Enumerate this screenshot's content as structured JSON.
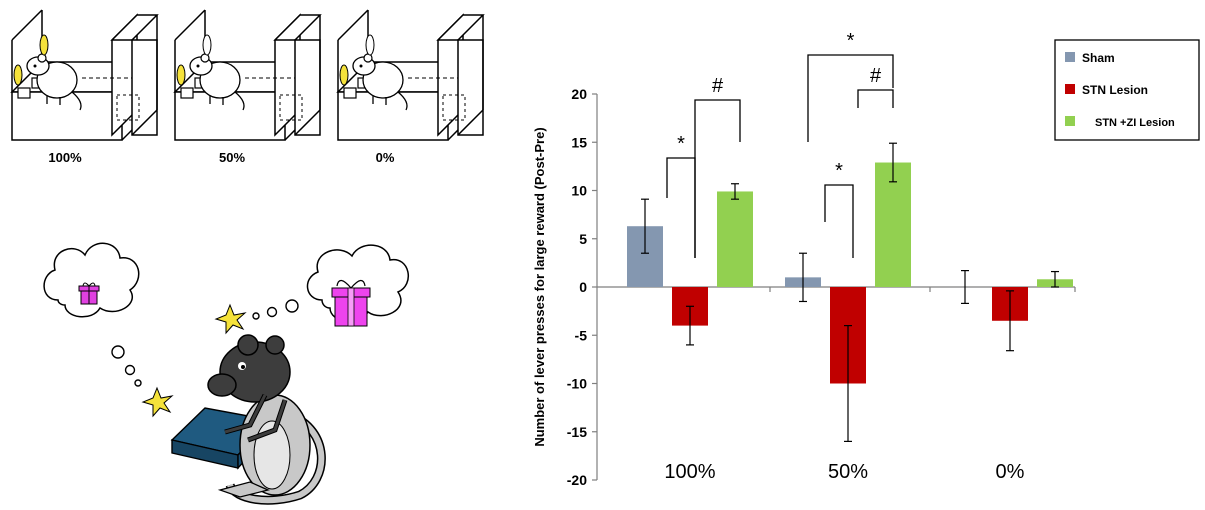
{
  "illustration": {
    "chamber_labels": [
      "100%",
      "50%",
      "0%"
    ]
  },
  "chart_data": {
    "type": "bar",
    "categories": [
      "100%",
      "50%",
      "0%"
    ],
    "series": [
      {
        "name": "Sham",
        "color": "#8497b0",
        "values": [
          6.3,
          1.0,
          0.0
        ],
        "errors": [
          2.8,
          2.5,
          1.7
        ]
      },
      {
        "name": "STN Lesion",
        "color": "#c00000",
        "values": [
          -4.0,
          -10.0,
          -3.5
        ],
        "errors": [
          2.0,
          6.0,
          3.1
        ]
      },
      {
        "name": "STN +ZI Lesion",
        "color": "#92d050",
        "values": [
          9.9,
          12.9,
          0.8
        ],
        "errors": [
          0.8,
          2.0,
          0.8
        ]
      }
    ],
    "ylabel": "Number of lever presses for large reward (Post-Pre)",
    "xlabel": "",
    "ylim": [
      -20,
      20
    ],
    "yticks": [
      -20,
      -15,
      -10,
      -5,
      0,
      5,
      10,
      15,
      20
    ],
    "grid": false,
    "legend_position": "top-right",
    "significance": [
      {
        "category": "100%",
        "pair": [
          "Sham",
          "STN Lesion"
        ],
        "symbol": "*"
      },
      {
        "category": "100%",
        "pair": [
          "STN Lesion",
          "STN +ZI Lesion"
        ],
        "symbol": "#"
      },
      {
        "category": "50%",
        "pair": [
          "Sham",
          "STN Lesion"
        ],
        "symbol": "*"
      },
      {
        "category": "50%",
        "pair": [
          "Sham",
          "STN +ZI Lesion"
        ],
        "symbol": "*"
      },
      {
        "category": "50%",
        "pair": [
          "STN Lesion",
          "STN +ZI Lesion"
        ],
        "symbol": "#"
      }
    ]
  }
}
